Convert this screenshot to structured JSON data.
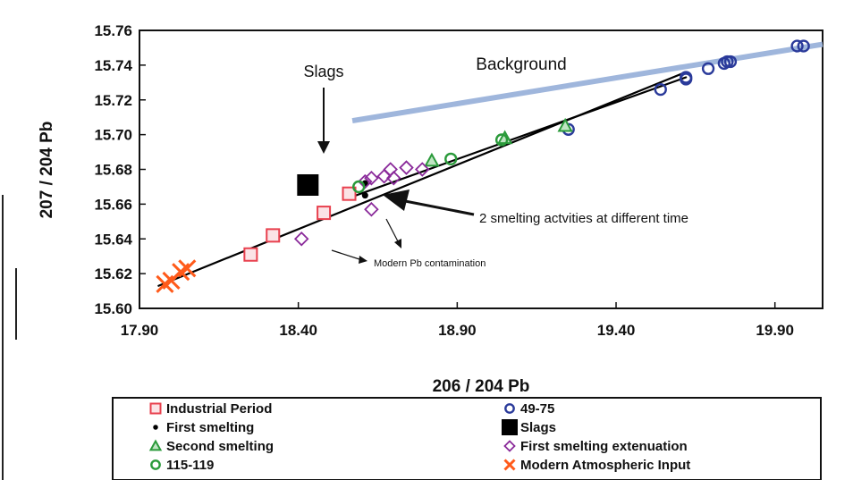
{
  "chart_data": {
    "type": "scatter",
    "xlabel": "206 / 204 Pb",
    "ylabel": "207 / 204 Pb",
    "xlim": [
      17.9,
      20.05
    ],
    "ylim": [
      15.6,
      15.76
    ],
    "xticks": [
      "17.90",
      "18.40",
      "18.90",
      "19.40",
      "19.90"
    ],
    "yticks": [
      "15.60",
      "15.62",
      "15.64",
      "15.66",
      "15.68",
      "15.70",
      "15.72",
      "15.74",
      "15.76"
    ],
    "grid": false,
    "legend_position": "bottom",
    "series": [
      {
        "name": "Industrial Period",
        "marker": "square-open",
        "color": "#e8404e",
        "points": [
          [
            18.25,
            15.631
          ],
          [
            18.32,
            15.642
          ],
          [
            18.48,
            15.655
          ],
          [
            18.56,
            15.666
          ]
        ]
      },
      {
        "name": "49-75",
        "marker": "circle-open",
        "color": "#2a3a9a",
        "points": [
          [
            19.25,
            15.703
          ],
          [
            19.54,
            15.726
          ],
          [
            19.62,
            15.732
          ],
          [
            19.62,
            15.733
          ],
          [
            19.69,
            15.738
          ],
          [
            19.74,
            15.741
          ],
          [
            19.75,
            15.742
          ],
          [
            19.76,
            15.742
          ],
          [
            19.97,
            15.751
          ],
          [
            19.99,
            15.751
          ]
        ]
      },
      {
        "name": "First smelting",
        "marker": "dot",
        "color": "#000000",
        "points": [
          [
            18.61,
            15.672
          ],
          [
            18.61,
            15.665
          ]
        ]
      },
      {
        "name": "Slags",
        "marker": "square-filled",
        "color": "#000000",
        "points": [
          [
            18.43,
            15.671
          ]
        ]
      },
      {
        "name": "Second smelting",
        "marker": "triangle-open",
        "color": "#2a9a3a",
        "points": [
          [
            18.82,
            15.685
          ],
          [
            19.05,
            15.698
          ],
          [
            19.24,
            15.705
          ]
        ]
      },
      {
        "name": "First smelting extenuation",
        "marker": "diamond-open",
        "color": "#8a2a9a",
        "points": [
          [
            18.41,
            15.64
          ],
          [
            18.63,
            15.657
          ],
          [
            18.63,
            15.675
          ],
          [
            18.69,
            15.68
          ],
          [
            18.7,
            15.675
          ],
          [
            18.74,
            15.681
          ],
          [
            18.79,
            15.68
          ],
          [
            18.61,
            15.673
          ],
          [
            18.67,
            15.676
          ]
        ]
      },
      {
        "name": "115-119",
        "marker": "circle-open",
        "color": "#2a9a3a",
        "points": [
          [
            18.59,
            15.67
          ],
          [
            18.88,
            15.686
          ],
          [
            19.04,
            15.697
          ]
        ]
      },
      {
        "name": "Modern Atmospheric Input",
        "marker": "x",
        "color": "#ff5a1a",
        "points": [
          [
            17.98,
            15.614
          ],
          [
            18.0,
            15.616
          ],
          [
            18.03,
            15.621
          ],
          [
            18.05,
            15.623
          ]
        ]
      }
    ],
    "lines": [
      {
        "label": "Background",
        "color": "#9fb6dc",
        "points": [
          [
            18.57,
            15.708
          ],
          [
            20.05,
            15.752
          ]
        ]
      },
      {
        "color": "#000000",
        "points": [
          [
            17.96,
            15.613
          ],
          [
            19.62,
            15.736
          ]
        ]
      },
      {
        "color": "#000000",
        "points": [
          [
            18.55,
            15.663
          ],
          [
            19.62,
            15.733
          ]
        ]
      }
    ],
    "annotations": [
      {
        "text": "Slags"
      },
      {
        "text": "Background"
      },
      {
        "text": "2 smelting actvities at different time"
      },
      {
        "text": "Modern Pb contamination"
      }
    ]
  }
}
